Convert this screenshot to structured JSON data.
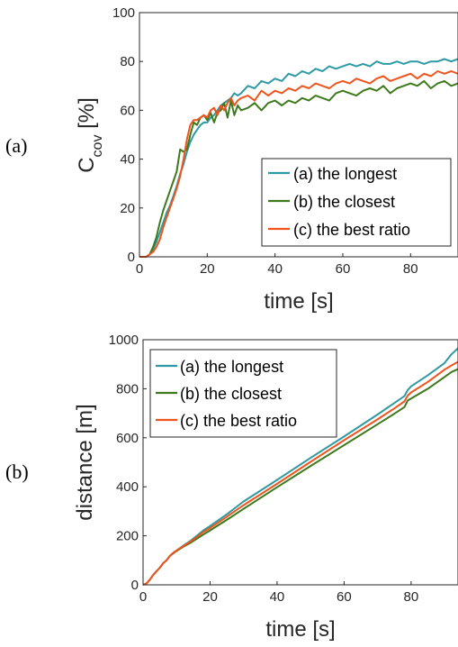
{
  "panel_labels": [
    "(a)",
    "(b)"
  ],
  "chart_data": [
    {
      "type": "line",
      "panel": "(a)",
      "title": "",
      "xlabel": "time [s]",
      "ylabel": "C",
      "ylabel_sub": "cov",
      "ylabel_unit": " [%]",
      "xlim": [
        0,
        94
      ],
      "ylim": [
        0,
        100
      ],
      "xticks": [
        "0",
        "20",
        "40",
        "60",
        "80"
      ],
      "yticks": [
        "0",
        "20",
        "40",
        "60",
        "80",
        "100"
      ],
      "grid": false,
      "legend_position": "bottom-right",
      "series": [
        {
          "name": "(a) the longest",
          "color": "#2E9AA4",
          "x": [
            0,
            2,
            3,
            4,
            5,
            6,
            7,
            8,
            9,
            10,
            11,
            12,
            13,
            14,
            15,
            16,
            17,
            18,
            19,
            20,
            21,
            22,
            23,
            24,
            25,
            26,
            27,
            28,
            29,
            30,
            32,
            34,
            36,
            38,
            40,
            42,
            44,
            46,
            48,
            50,
            52,
            54,
            56,
            58,
            60,
            62,
            64,
            66,
            68,
            70,
            72,
            74,
            76,
            78,
            80,
            82,
            84,
            86,
            88,
            90,
            92,
            94
          ],
          "y": [
            0,
            0,
            1,
            3,
            6,
            10,
            14,
            18,
            21,
            25,
            29,
            34,
            38,
            43,
            47,
            50,
            52,
            54,
            55,
            55,
            57,
            58,
            60,
            62,
            63,
            64,
            65,
            67,
            66,
            67,
            70,
            69,
            72,
            71,
            73,
            72,
            75,
            74,
            76,
            75,
            77,
            76,
            78,
            77,
            78,
            79,
            78,
            79,
            78,
            80,
            79,
            79,
            80,
            79,
            80,
            80,
            79,
            80,
            80,
            81,
            80,
            81
          ]
        },
        {
          "name": "(b) the closest",
          "color": "#3C7A1C",
          "x": [
            0,
            2,
            3,
            4,
            5,
            6,
            7,
            8,
            9,
            10,
            11,
            12,
            13,
            14,
            15,
            16,
            17,
            18,
            19,
            20,
            21,
            22,
            23,
            24,
            25,
            26,
            27,
            28,
            29,
            30,
            32,
            34,
            36,
            38,
            40,
            42,
            44,
            46,
            48,
            50,
            52,
            54,
            56,
            58,
            60,
            62,
            64,
            66,
            68,
            70,
            72,
            74,
            76,
            78,
            80,
            82,
            84,
            86,
            88,
            90,
            92,
            94
          ],
          "y": [
            0,
            0,
            1,
            4,
            8,
            14,
            19,
            23,
            27,
            31,
            35,
            44,
            43,
            44,
            50,
            55,
            54,
            57,
            58,
            56,
            59,
            55,
            59,
            60,
            63,
            57,
            64,
            58,
            62,
            60,
            61,
            63,
            60,
            63,
            64,
            62,
            64,
            63,
            65,
            64,
            66,
            65,
            64,
            67,
            68,
            67,
            66,
            68,
            69,
            68,
            70,
            67,
            69,
            70,
            71,
            70,
            72,
            69,
            71,
            72,
            70,
            71
          ]
        },
        {
          "name": "(c) the best ratio",
          "color": "#F0541E",
          "x": [
            0,
            2,
            3,
            4,
            5,
            6,
            7,
            8,
            9,
            10,
            11,
            12,
            13,
            14,
            15,
            16,
            17,
            18,
            19,
            20,
            21,
            22,
            23,
            24,
            25,
            26,
            27,
            28,
            29,
            30,
            32,
            34,
            36,
            38,
            40,
            42,
            44,
            46,
            48,
            50,
            52,
            54,
            56,
            58,
            60,
            62,
            64,
            66,
            68,
            70,
            72,
            74,
            76,
            78,
            80,
            82,
            84,
            86,
            88,
            90,
            92,
            94
          ],
          "y": [
            0,
            0,
            1,
            2,
            4,
            7,
            12,
            16,
            20,
            24,
            28,
            33,
            40,
            48,
            54,
            56,
            56,
            57,
            58,
            57,
            60,
            61,
            58,
            62,
            60,
            63,
            65,
            62,
            64,
            65,
            66,
            64,
            68,
            66,
            68,
            67,
            69,
            68,
            70,
            69,
            71,
            70,
            69,
            71,
            72,
            71,
            73,
            72,
            71,
            73,
            74,
            72,
            73,
            74,
            75,
            73,
            75,
            74,
            76,
            75,
            76,
            75
          ]
        }
      ]
    },
    {
      "type": "line",
      "panel": "(b)",
      "title": "",
      "xlabel": "time [s]",
      "ylabel": "distance [m]",
      "xlim": [
        0,
        94
      ],
      "ylim": [
        0,
        1000
      ],
      "xticks": [
        "0",
        "20",
        "40",
        "60",
        "80"
      ],
      "yticks": [
        "0",
        "200",
        "400",
        "600",
        "800",
        "1000"
      ],
      "grid": false,
      "legend_position": "top-left",
      "series": [
        {
          "name": "(a) the longest",
          "color": "#2E9AA4",
          "x": [
            0,
            1,
            2,
            3,
            4,
            5,
            6,
            7,
            8,
            9,
            10,
            12,
            14,
            16,
            18,
            20,
            25,
            30,
            40,
            50,
            60,
            70,
            75,
            78,
            79,
            80,
            85,
            90,
            92,
            94
          ],
          "y": [
            0,
            5,
            20,
            40,
            55,
            70,
            88,
            100,
            118,
            130,
            140,
            160,
            178,
            200,
            222,
            240,
            288,
            340,
            428,
            518,
            605,
            695,
            742,
            770,
            795,
            810,
            855,
            905,
            940,
            965
          ]
        },
        {
          "name": "(b) the closest",
          "color": "#3C7A1C",
          "x": [
            0,
            1,
            2,
            3,
            4,
            5,
            6,
            7,
            8,
            9,
            10,
            12,
            14,
            16,
            18,
            20,
            25,
            30,
            40,
            50,
            60,
            70,
            75,
            78,
            79,
            80,
            85,
            90,
            92,
            94
          ],
          "y": [
            0,
            5,
            20,
            40,
            55,
            70,
            88,
            100,
            118,
            128,
            138,
            155,
            170,
            188,
            205,
            222,
            265,
            310,
            398,
            485,
            570,
            655,
            698,
            725,
            752,
            760,
            800,
            848,
            868,
            880
          ]
        },
        {
          "name": "(c) the best ratio",
          "color": "#F0541E",
          "x": [
            0,
            1,
            2,
            3,
            4,
            5,
            6,
            7,
            8,
            9,
            10,
            12,
            14,
            16,
            18,
            20,
            25,
            30,
            40,
            50,
            60,
            70,
            75,
            78,
            79,
            80,
            85,
            90,
            92,
            94
          ],
          "y": [
            0,
            5,
            20,
            40,
            55,
            70,
            88,
            100,
            118,
            130,
            140,
            158,
            175,
            195,
            215,
            232,
            278,
            325,
            412,
            502,
            590,
            675,
            720,
            748,
            772,
            785,
            828,
            878,
            895,
            910
          ]
        }
      ]
    }
  ]
}
